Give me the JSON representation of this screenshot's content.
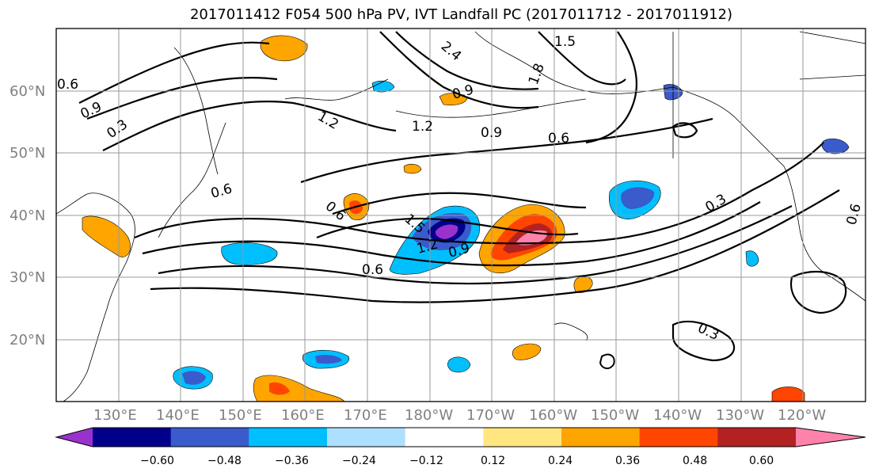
{
  "title": "2017011412 F054 500 hPa PV, IVT Landfall PC (2017011712 - 2017011912)",
  "lat_labels": [
    "60°N",
    "50°N",
    "40°N",
    "30°N",
    "20°N"
  ],
  "lon_labels": [
    "130°E",
    "140°E",
    "150°E",
    "160°E",
    "170°E",
    "180°W",
    "170°W",
    "160°W",
    "150°W",
    "140°W",
    "130°W",
    "120°W"
  ],
  "contour_labels": [
    "0.6",
    "0.9",
    "0.3",
    "0.6",
    "1.2",
    "0.9",
    "0.6",
    "0.6",
    "1.5",
    "1.2",
    "0.9",
    "0.6",
    "1.5",
    "0.9",
    "1.8",
    "2.4",
    "0.3",
    "0.3",
    "0.6",
    "1.2"
  ],
  "colorbar": {
    "ticks": [
      "−0.60",
      "−0.48",
      "−0.36",
      "−0.24",
      "−0.12",
      "0.12",
      "0.24",
      "0.36",
      "0.48",
      "0.60"
    ],
    "colors": [
      "#9932CC",
      "#00008B",
      "#3A5BCC",
      "#00BFFF",
      "#ADDFFF",
      "#FFFFFF",
      "#FFE680",
      "#FFA500",
      "#FF4500",
      "#B22222",
      "#FF82AB"
    ]
  }
}
